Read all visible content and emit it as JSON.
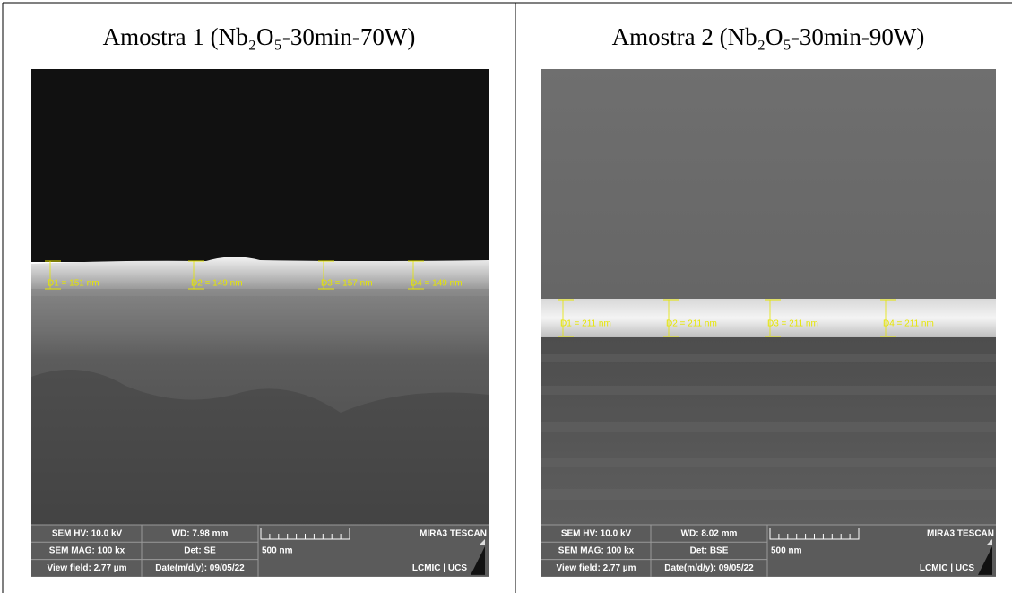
{
  "table": {
    "columns": [
      {
        "title": "Amostra 1 (Nb₂O₅-30min-70W)",
        "image": {
          "measurements": [
            "D1 = 151 nm",
            "D2 = 149 nm",
            "D3 = 157 nm",
            "D4 = 149 nm"
          ],
          "info": {
            "hv": "SEM HV: 10.0 kV",
            "wd": "WD: 7.98 mm",
            "brand": "MIRA3 TESCAN",
            "mag": "SEM MAG: 100 kx",
            "det": "Det: SE",
            "scale": "500 nm",
            "field": "View field: 2.77 µm",
            "date": "Date(m/d/y): 09/05/22",
            "lab": "LCMIC | UCS"
          }
        }
      },
      {
        "title": "Amostra 2 (Nb₂O₅-30min-90W)",
        "image": {
          "measurements": [
            "D1 = 211 nm",
            "D2 = 211 nm",
            "D3 = 211 nm",
            "D4 = 211 nm"
          ],
          "info": {
            "hv": "SEM HV: 10.0 kV",
            "wd": "WD: 8.02 mm",
            "brand": "MIRA3 TESCAN",
            "mag": "SEM MAG: 100 kx",
            "det": "Det: BSE",
            "scale": "500 nm",
            "field": "View field: 2.77 µm",
            "date": "Date(m/d/y): 09/05/22",
            "lab": "LCMIC | UCS"
          }
        }
      }
    ]
  }
}
